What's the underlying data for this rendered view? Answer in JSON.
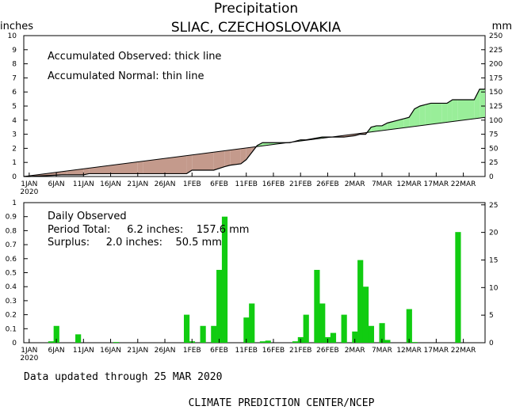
{
  "header": {
    "title": "Precipitation",
    "subtitle": "SLIAC, CZECHOSLOVAKIA",
    "left_unit": "inches",
    "right_unit": "mm"
  },
  "legend": {
    "observed": "Accumulated Observed: thick line",
    "normal": "Accumulated Normal: thin line"
  },
  "stats": {
    "heading": "Daily Observed",
    "period_line": "Period Total:     6.2 inches:    157.6 mm",
    "surplus_line": "Surplus:     2.0 inches:    50.5 mm"
  },
  "footer": {
    "updated": "Data updated through 25 MAR 2020",
    "credit": "CLIMATE PREDICTION CENTER/NCEP"
  },
  "colors": {
    "surplus_fill": "#99ee99",
    "deficit_fill": "#c49a8c",
    "bar": "#11cc11"
  },
  "chart_data": [
    {
      "type": "area",
      "xlabels": [
        "1JAN",
        "6JAN",
        "11JAN",
        "16JAN",
        "21JAN",
        "26JAN",
        "1FEB",
        "6FEB",
        "11FEB",
        "16FEB",
        "21FEB",
        "26FEB",
        "2MAR",
        "7MAR",
        "12MAR",
        "17MAR",
        "22MAR"
      ],
      "year_label": "2020",
      "yticks_left": [
        "0",
        "1",
        "2",
        "3",
        "4",
        "5",
        "6",
        "7",
        "8",
        "9",
        "10"
      ],
      "yticks_right": [
        "0",
        "25",
        "50",
        "75",
        "100",
        "125",
        "150",
        "175",
        "200",
        "225",
        "250"
      ],
      "xlim": [
        0,
        85
      ],
      "ylim": [
        0,
        10
      ],
      "series": [
        {
          "name": "Accumulated Observed",
          "points": [
            [
              0,
              0
            ],
            [
              1,
              0
            ],
            [
              7,
              0.12
            ],
            [
              8,
              0.12
            ],
            [
              11,
              0.12
            ],
            [
              12,
              0.2
            ],
            [
              21,
              0.2
            ],
            [
              22,
              0.2
            ],
            [
              30,
              0.2
            ],
            [
              31,
              0.45
            ],
            [
              35,
              0.45
            ],
            [
              37,
              0.7
            ],
            [
              38,
              0.8
            ],
            [
              40,
              0.9
            ],
            [
              41,
              1.2
            ],
            [
              42,
              1.7
            ],
            [
              43,
              2.2
            ],
            [
              44,
              2.4
            ],
            [
              45,
              2.4
            ],
            [
              49,
              2.4
            ],
            [
              51,
              2.6
            ],
            [
              52,
              2.6
            ],
            [
              55,
              2.8
            ],
            [
              57,
              2.8
            ],
            [
              59,
              2.8
            ],
            [
              61,
              2.9
            ],
            [
              62,
              3.0
            ],
            [
              63,
              3.0
            ],
            [
              64,
              3.5
            ],
            [
              65,
              3.6
            ],
            [
              66,
              3.6
            ],
            [
              67,
              3.8
            ],
            [
              69,
              4.0
            ],
            [
              70,
              4.1
            ],
            [
              71,
              4.2
            ],
            [
              72,
              4.8
            ],
            [
              73,
              5.0
            ],
            [
              74,
              5.1
            ],
            [
              75,
              5.2
            ],
            [
              77,
              5.2
            ],
            [
              78,
              5.2
            ],
            [
              79,
              5.45
            ],
            [
              80,
              5.45
            ],
            [
              83,
              5.45
            ],
            [
              84,
              6.2
            ],
            [
              85,
              6.2
            ]
          ]
        },
        {
          "name": "Accumulated Normal",
          "points": [
            [
              0,
              0
            ],
            [
              85,
              4.2
            ]
          ]
        }
      ]
    },
    {
      "type": "bar",
      "xlabels": [
        "1JAN",
        "6JAN",
        "11JAN",
        "16JAN",
        "21JAN",
        "26JAN",
        "1FEB",
        "6FEB",
        "11FEB",
        "16FEB",
        "21FEB",
        "26FEB",
        "2MAR",
        "7MAR",
        "12MAR",
        "17MAR",
        "22MAR"
      ],
      "year_label": "2020",
      "yticks_left": [
        "0",
        "0.1",
        "0.2",
        "0.3",
        "0.4",
        "0.5",
        "0.6",
        "0.7",
        "0.8",
        "0.9",
        "1"
      ],
      "yticks_right": [
        "0",
        "5",
        "10",
        "15",
        "20",
        "25"
      ],
      "ylim": [
        0,
        1
      ],
      "values": [
        [
          5,
          0.01
        ],
        [
          6,
          0.12
        ],
        [
          10,
          0.06
        ],
        [
          17,
          0.005
        ],
        [
          30,
          0.2
        ],
        [
          31,
          0.01
        ],
        [
          33,
          0.12
        ],
        [
          35,
          0.12
        ],
        [
          36,
          0.52
        ],
        [
          37,
          0.9
        ],
        [
          41,
          0.18
        ],
        [
          42,
          0.28
        ],
        [
          44,
          0.01
        ],
        [
          45,
          0.015
        ],
        [
          50,
          0.01
        ],
        [
          51,
          0.04
        ],
        [
          52,
          0.2
        ],
        [
          54,
          0.52
        ],
        [
          55,
          0.28
        ],
        [
          56,
          0.04
        ],
        [
          57,
          0.07
        ],
        [
          59,
          0.2
        ],
        [
          61,
          0.08
        ],
        [
          62,
          0.59
        ],
        [
          63,
          0.4
        ],
        [
          64,
          0.12
        ],
        [
          66,
          0.14
        ],
        [
          67,
          0.02
        ],
        [
          71,
          0.24
        ],
        [
          72,
          0.005
        ],
        [
          80,
          0.79
        ]
      ]
    }
  ]
}
